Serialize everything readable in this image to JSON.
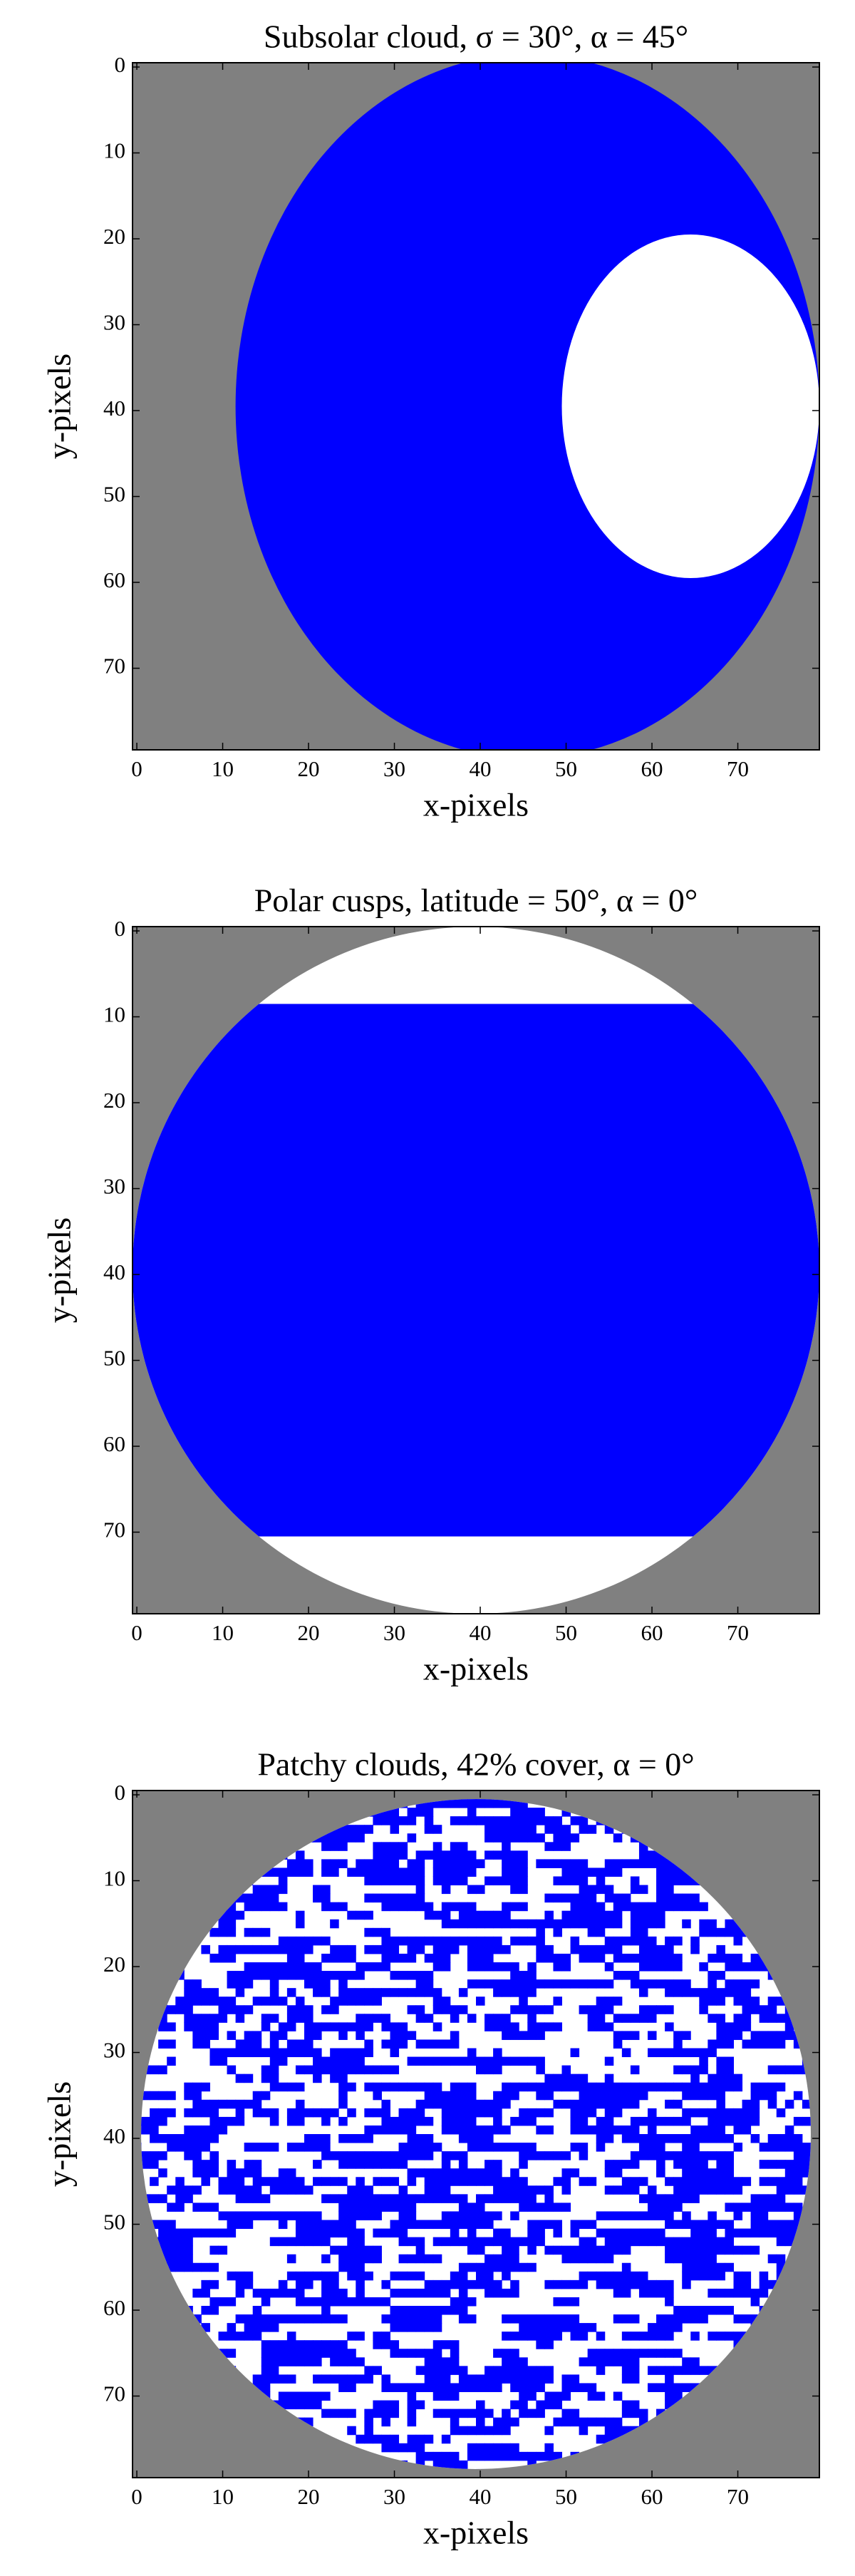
{
  "chart_data": [
    {
      "type": "image",
      "title": "Subsolar cloud, σ = 30°, α = 45°",
      "xlabel": "x-pixels",
      "ylabel": "y-pixels",
      "xlim": [
        -0.5,
        79.5
      ],
      "ylim": [
        79.5,
        -0.5
      ],
      "xticks": [
        0,
        10,
        20,
        30,
        40,
        50,
        60,
        70
      ],
      "yticks": [
        0,
        10,
        20,
        30,
        40,
        50,
        60,
        70
      ]
    },
    {
      "type": "image",
      "title": "Polar cusps, latitude = 50°, α = 0°",
      "xlabel": "x-pixels",
      "ylabel": "y-pixels",
      "xlim": [
        -0.5,
        79.5
      ],
      "ylim": [
        79.5,
        -0.5
      ],
      "xticks": [
        0,
        10,
        20,
        30,
        40,
        50,
        60,
        70
      ],
      "yticks": [
        0,
        10,
        20,
        30,
        40,
        50,
        60,
        70
      ]
    },
    {
      "type": "image",
      "title": "Patchy clouds, 42% cover, α = 0°",
      "xlabel": "x-pixels",
      "ylabel": "y-pixels",
      "xlim": [
        -0.5,
        79.5
      ],
      "ylim": [
        79.5,
        -0.5
      ],
      "xticks": [
        0,
        10,
        20,
        30,
        40,
        50,
        60,
        70
      ],
      "yticks": [
        0,
        10,
        20,
        30,
        40,
        50,
        60,
        70
      ]
    }
  ]
}
